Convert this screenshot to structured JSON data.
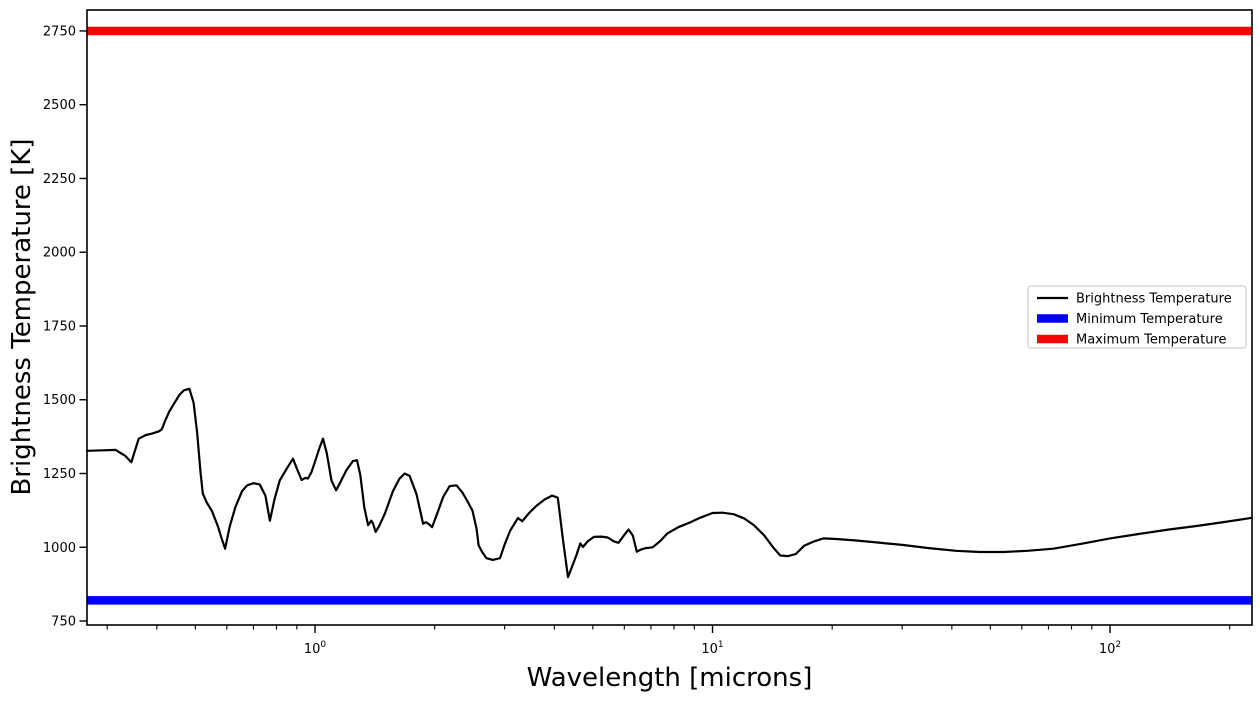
{
  "chart_data": {
    "type": "line",
    "title": "",
    "xlabel": "Wavelength [microns]",
    "ylabel": "Brightness Temperature [K]",
    "x_scale": "log",
    "y_scale": "linear",
    "grid": false,
    "xlim": [
      0.2669,
      227.6
    ],
    "ylim": [
      736.5,
      2821
    ],
    "y_ticks": [
      750,
      1000,
      1250,
      1500,
      1750,
      2000,
      2250,
      2500,
      2750
    ],
    "x_major_ticks": [
      {
        "value": 1,
        "mantissa": "10",
        "exponent": "0"
      },
      {
        "value": 10,
        "mantissa": "10",
        "exponent": "1"
      },
      {
        "value": 100,
        "mantissa": "10",
        "exponent": "2"
      }
    ],
    "x_minor_ticks": [
      0.3,
      0.4,
      0.5,
      0.6,
      0.7,
      0.8,
      0.9,
      2,
      3,
      4,
      5,
      6,
      7,
      8,
      9,
      20,
      30,
      40,
      50,
      60,
      70,
      80,
      90,
      200
    ],
    "legend": {
      "position": "center-right",
      "entries": [
        {
          "label": "Brightness Temperature",
          "color": "#000000",
          "linewidth": 2.2
        },
        {
          "label": "Minimum Temperature",
          "color": "#0000ff",
          "linewidth": 8.5
        },
        {
          "label": "Maximum Temperature",
          "color": "#ff0000",
          "linewidth": 8.5
        }
      ]
    },
    "series": [
      {
        "name": "Brightness Temperature",
        "color": "#000000",
        "linewidth": 2.2,
        "x": [
          0.267,
          0.3,
          0.315,
          0.333,
          0.345,
          0.36,
          0.375,
          0.39,
          0.405,
          0.412,
          0.42,
          0.43,
          0.44,
          0.455,
          0.468,
          0.483,
          0.495,
          0.505,
          0.515,
          0.522,
          0.535,
          0.55,
          0.57,
          0.582,
          0.594,
          0.61,
          0.63,
          0.655,
          0.675,
          0.7,
          0.726,
          0.75,
          0.77,
          0.79,
          0.815,
          0.85,
          0.88,
          0.9,
          0.925,
          0.945,
          0.96,
          0.98,
          1.0,
          1.025,
          1.047,
          1.07,
          1.1,
          1.13,
          1.16,
          1.2,
          1.245,
          1.275,
          1.3,
          1.33,
          1.36,
          1.385,
          1.4,
          1.42,
          1.45,
          1.5,
          1.57,
          1.63,
          1.68,
          1.73,
          1.8,
          1.87,
          1.9,
          1.935,
          1.97,
          2.03,
          2.1,
          2.18,
          2.27,
          2.35,
          2.42,
          2.49,
          2.55,
          2.58,
          2.63,
          2.7,
          2.8,
          2.92,
          3.0,
          3.1,
          3.24,
          3.32,
          3.45,
          3.6,
          3.78,
          3.95,
          4.08,
          4.2,
          4.33,
          4.45,
          4.55,
          4.65,
          4.72,
          4.85,
          5.03,
          5.25,
          5.45,
          5.65,
          5.8,
          6.0,
          6.15,
          6.3,
          6.45,
          6.6,
          6.8,
          7.07,
          7.4,
          7.7,
          8.2,
          8.77,
          9.3,
          10.0,
          10.6,
          11.3,
          12.0,
          12.7,
          13.5,
          14.2,
          14.8,
          15.5,
          16.2,
          17.0,
          18.0,
          19.0,
          20.5,
          23.0,
          26.0,
          30.0,
          35.0,
          41.0,
          47.0,
          54.0,
          62.0,
          72.0,
          85.0,
          100.0,
          118.0,
          140.0,
          165.0,
          195.0,
          227.6
        ],
        "y": [
          1327,
          1329,
          1330,
          1310,
          1288,
          1368,
          1380,
          1386,
          1393,
          1400,
          1430,
          1460,
          1483,
          1515,
          1532,
          1537,
          1490,
          1390,
          1255,
          1182,
          1150,
          1124,
          1070,
          1030,
          995,
          1070,
          1135,
          1190,
          1210,
          1217,
          1213,
          1175,
          1090,
          1160,
          1226,
          1268,
          1300,
          1267,
          1228,
          1235,
          1233,
          1255,
          1290,
          1335,
          1368,
          1320,
          1226,
          1193,
          1222,
          1262,
          1292,
          1295,
          1245,
          1135,
          1075,
          1090,
          1080,
          1052,
          1072,
          1115,
          1190,
          1232,
          1250,
          1242,
          1180,
          1080,
          1085,
          1078,
          1068,
          1115,
          1170,
          1207,
          1210,
          1185,
          1155,
          1124,
          1062,
          1007,
          985,
          963,
          957,
          963,
          1010,
          1057,
          1099,
          1088,
          1115,
          1140,
          1162,
          1175,
          1168,
          1030,
          899,
          940,
          975,
          1013,
          1001,
          1020,
          1035,
          1036,
          1033,
          1020,
          1015,
          1042,
          1060,
          1040,
          985,
          992,
          997,
          1000,
          1022,
          1047,
          1068,
          1084,
          1100,
          1116,
          1117,
          1112,
          1098,
          1075,
          1040,
          1000,
          972,
          970,
          977,
          1005,
          1020,
          1030,
          1028,
          1023,
          1016,
          1008,
          997,
          988,
          984,
          984,
          988,
          995,
          1012,
          1030,
          1045,
          1060,
          1072,
          1086,
          1100
        ]
      },
      {
        "name": "Minimum Temperature",
        "color": "#0000ff",
        "linewidth": 8.5,
        "constant_y": 820
      },
      {
        "name": "Maximum Temperature",
        "color": "#ff0000",
        "linewidth": 8.5,
        "constant_y": 2750
      }
    ]
  }
}
